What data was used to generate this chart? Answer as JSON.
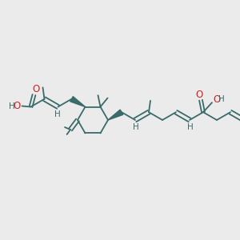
{
  "bg_color": "#ebebeb",
  "bond_color": "#3a6b6b",
  "o_color": "#cc2222",
  "lw": 1.3,
  "fs": 7.5,
  "dpi": 100,
  "fig_w": 3.0,
  "fig_h": 3.0,
  "xlim": [
    0,
    15
  ],
  "ylim": [
    0,
    15
  ],
  "sep": 0.13
}
